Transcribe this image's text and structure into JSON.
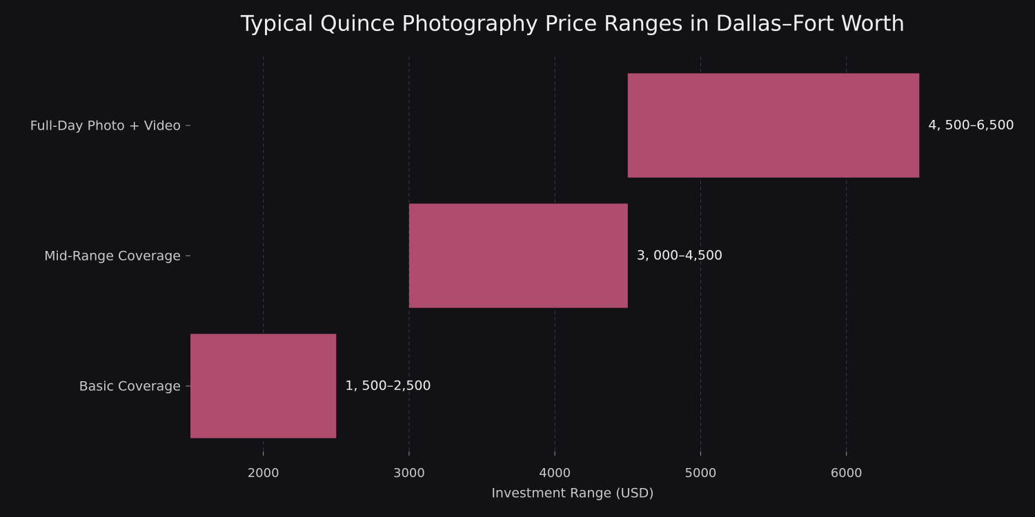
{
  "chart_data": {
    "type": "range-bar",
    "title": "Typical Quince Photography Price Ranges in Dallas–Fort Worth",
    "x_label": "Investment Range (USD)",
    "categories": [
      "Basic Coverage",
      "Mid-Range Coverage",
      "Full-Day Photo + Video"
    ],
    "starts": [
      1500,
      3000,
      4500
    ],
    "ends": [
      2500,
      4500,
      6500
    ],
    "value_labels": [
      "1, 500–2,500",
      "3, 000–4,500",
      "4, 500–6,500"
    ],
    "color": "#b04d6f",
    "xlim": [
      1500,
      7000
    ],
    "xticks": [
      2000,
      3000,
      4000,
      5000,
      6000
    ],
    "grid": true
  }
}
